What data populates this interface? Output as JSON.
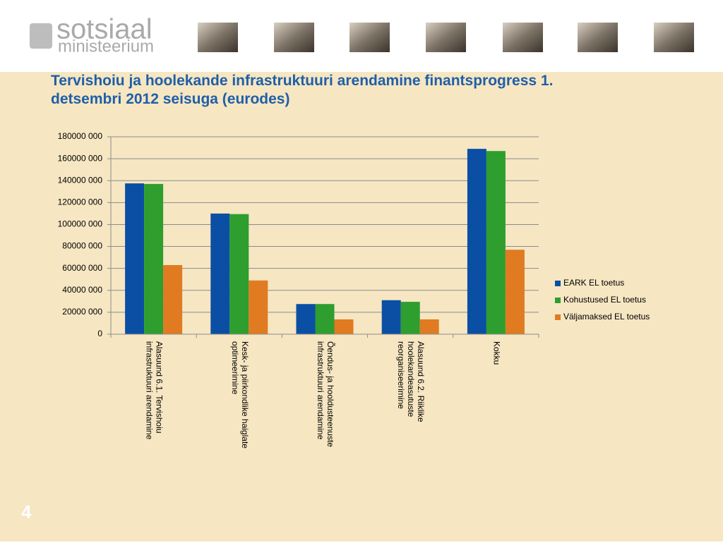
{
  "header": {
    "logo_line1": "sotsiaal",
    "logo_line2": "ministeerium"
  },
  "page_number": "4",
  "chart_data": {
    "type": "bar",
    "title": "Tervishoiu ja hoolekande infrastruktuuri arendamine finantsprogress 1. detsembri 2012 seisuga (eurodes)",
    "categories": [
      "Alasuund 6.1. Tervishoiu\ninfrastruktuuri arendamine",
      "Kesk- ja piirkondlike haiglate\noptimeerimine",
      "Õendus- ja hooldusteenuste\ninfrastruktuuri arendamine",
      "Alasuund 6.2. Riiklike\nhoolekandeasutuste\nreorganiseerimine",
      "Kokku"
    ],
    "series": [
      {
        "name": "EARK EL toetus",
        "color": "#0b4fa4",
        "values": [
          137500000,
          110000000,
          27500000,
          31000000,
          169000000
        ]
      },
      {
        "name": "Kohustused EL toetus",
        "color": "#2e9e2e",
        "values": [
          137000000,
          109500000,
          27500000,
          29500000,
          167000000
        ]
      },
      {
        "name": "Väljamaksed EL toetus",
        "color": "#e07b22",
        "values": [
          63000000,
          49000000,
          13500000,
          13500000,
          77000000
        ]
      }
    ],
    "ylim": [
      0,
      180000000
    ],
    "yticks": [
      0,
      {
        "value": 20000000,
        "label": "20000 000"
      },
      {
        "value": 40000000,
        "label": "40000 000"
      },
      {
        "value": 60000000,
        "label": "60000 000"
      },
      {
        "value": 80000000,
        "label": "80000 000"
      },
      {
        "value": 100000000,
        "label": "100000 000"
      },
      {
        "value": 120000000,
        "label": "120000 000"
      },
      {
        "value": 140000000,
        "label": "140000 000"
      },
      {
        "value": 160000000,
        "label": "160000 000"
      },
      {
        "value": 180000000,
        "label": "180000 000"
      }
    ],
    "grid": true,
    "legend": "right"
  }
}
